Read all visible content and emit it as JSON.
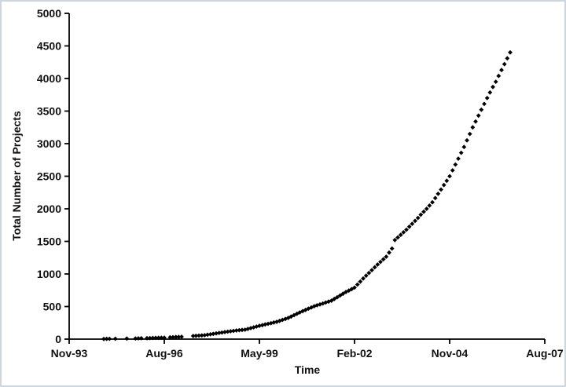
{
  "frame": {
    "border_color": "#cfd5dd",
    "background": "#ffffff"
  },
  "chart_data": {
    "type": "scatter",
    "title": "",
    "xlabel": "Time",
    "ylabel": "Total Number of Projects",
    "marker": "diamond",
    "marker_color": "#000000",
    "axis_color": "#000000",
    "grid": false,
    "legend": null,
    "x_unit": "months since Nov-1993",
    "xlim_months": [
      0,
      165
    ],
    "ylim": [
      0,
      5000
    ],
    "x_tick_labels": [
      "Nov-93",
      "Aug-96",
      "May-99",
      "Feb-02",
      "Nov-04",
      "Aug-07"
    ],
    "x_tick_months": [
      0,
      33,
      66,
      99,
      132,
      165
    ],
    "y_ticks": [
      0,
      500,
      1000,
      1500,
      2000,
      2500,
      3000,
      3500,
      4000,
      4500,
      5000
    ],
    "points": [
      [
        12,
        3
      ],
      [
        13,
        4
      ],
      [
        14,
        5
      ],
      [
        16,
        6
      ],
      [
        20,
        8
      ],
      [
        23,
        10
      ],
      [
        24,
        12
      ],
      [
        25,
        13
      ],
      [
        27,
        15
      ],
      [
        28,
        16
      ],
      [
        29,
        18
      ],
      [
        30,
        19
      ],
      [
        31,
        20
      ],
      [
        32,
        22
      ],
      [
        33,
        23
      ],
      [
        35,
        28
      ],
      [
        36,
        30
      ],
      [
        37,
        32
      ],
      [
        38,
        34
      ],
      [
        39,
        36
      ],
      [
        43,
        48
      ],
      [
        44,
        51
      ],
      [
        45,
        54
      ],
      [
        46,
        57
      ],
      [
        47,
        60
      ],
      [
        48,
        67
      ],
      [
        49,
        74
      ],
      [
        50,
        81
      ],
      [
        51,
        88
      ],
      [
        52,
        95
      ],
      [
        53,
        101
      ],
      [
        54,
        108
      ],
      [
        55,
        114
      ],
      [
        56,
        120
      ],
      [
        57,
        127
      ],
      [
        58,
        133
      ],
      [
        59,
        137
      ],
      [
        60,
        141
      ],
      [
        61,
        145
      ],
      [
        62,
        157
      ],
      [
        63,
        169
      ],
      [
        64,
        181
      ],
      [
        65,
        193
      ],
      [
        66,
        205
      ],
      [
        67,
        215
      ],
      [
        68,
        225
      ],
      [
        69,
        235
      ],
      [
        70,
        245
      ],
      [
        71,
        255
      ],
      [
        72,
        265
      ],
      [
        73,
        280
      ],
      [
        74,
        295
      ],
      [
        75,
        310
      ],
      [
        76,
        325
      ],
      [
        77,
        346
      ],
      [
        78,
        367
      ],
      [
        79,
        389
      ],
      [
        80,
        410
      ],
      [
        81,
        429
      ],
      [
        82,
        448
      ],
      [
        83,
        467
      ],
      [
        84,
        486
      ],
      [
        85,
        505
      ],
      [
        86,
        519
      ],
      [
        87,
        533
      ],
      [
        88,
        547
      ],
      [
        89,
        561
      ],
      [
        90,
        576
      ],
      [
        91,
        590
      ],
      [
        92,
        617
      ],
      [
        93,
        643
      ],
      [
        94,
        670
      ],
      [
        95,
        696
      ],
      [
        96,
        723
      ],
      [
        97,
        745
      ],
      [
        98,
        767
      ],
      [
        99,
        790
      ],
      [
        100,
        837
      ],
      [
        101,
        883
      ],
      [
        102,
        930
      ],
      [
        103,
        973
      ],
      [
        104,
        1016
      ],
      [
        105,
        1059
      ],
      [
        106,
        1102
      ],
      [
        107,
        1145
      ],
      [
        108,
        1185
      ],
      [
        109,
        1225
      ],
      [
        110,
        1265
      ],
      [
        111,
        1328
      ],
      [
        112,
        1390
      ],
      [
        113,
        1520
      ],
      [
        114,
        1560
      ],
      [
        115,
        1600
      ],
      [
        116,
        1640
      ],
      [
        117,
        1680
      ],
      [
        118,
        1725
      ],
      [
        119,
        1770
      ],
      [
        120,
        1815
      ],
      [
        121,
        1860
      ],
      [
        122,
        1910
      ],
      [
        123,
        1955
      ],
      [
        124,
        2000
      ],
      [
        125,
        2050
      ],
      [
        126,
        2100
      ],
      [
        127,
        2165
      ],
      [
        128,
        2230
      ],
      [
        129,
        2295
      ],
      [
        130,
        2365
      ],
      [
        131,
        2430
      ],
      [
        132,
        2500
      ],
      [
        133,
        2590
      ],
      [
        134,
        2680
      ],
      [
        135,
        2770
      ],
      [
        136,
        2860
      ],
      [
        137,
        2950
      ],
      [
        138,
        3050
      ],
      [
        139,
        3150
      ],
      [
        140,
        3250
      ],
      [
        141,
        3340
      ],
      [
        142,
        3430
      ],
      [
        143,
        3520
      ],
      [
        144,
        3610
      ],
      [
        145,
        3700
      ],
      [
        146,
        3785
      ],
      [
        147,
        3870
      ],
      [
        148,
        3950
      ],
      [
        149,
        4040
      ],
      [
        150,
        4130
      ],
      [
        151,
        4220
      ],
      [
        152,
        4310
      ],
      [
        153,
        4400
      ]
    ]
  }
}
